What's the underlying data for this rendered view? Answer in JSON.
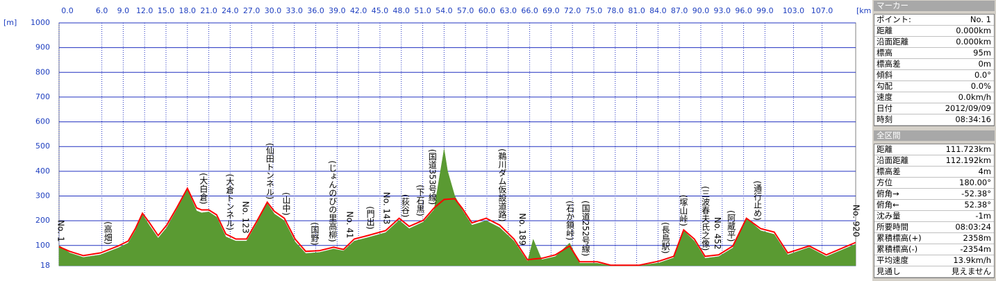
{
  "chart_data": {
    "type": "profile",
    "y_unit": "[m]",
    "x_unit": "[km]",
    "xlim": [
      0,
      111.723
    ],
    "ylim": [
      18,
      1000
    ],
    "xticks": [
      {
        "value": 0,
        "label": "0.0"
      },
      {
        "value": 6,
        "label": "6.0"
      },
      {
        "value": 9,
        "label": "9.0"
      },
      {
        "value": 12,
        "label": "12.0"
      },
      {
        "value": 15,
        "label": "15.0"
      },
      {
        "value": 18,
        "label": "18.0"
      },
      {
        "value": 21,
        "label": "21.0"
      },
      {
        "value": 24,
        "label": "24.0"
      },
      {
        "value": 27,
        "label": "27.0"
      },
      {
        "value": 30,
        "label": "30.0"
      },
      {
        "value": 33,
        "label": "33.0"
      },
      {
        "value": 36,
        "label": "36.0"
      },
      {
        "value": 39,
        "label": "39.0"
      },
      {
        "value": 42,
        "label": "42.0"
      },
      {
        "value": 45,
        "label": "45.0"
      },
      {
        "value": 48,
        "label": "48.0"
      },
      {
        "value": 51,
        "label": "51.0"
      },
      {
        "value": 54,
        "label": "54.0"
      },
      {
        "value": 57,
        "label": "57.0"
      },
      {
        "value": 60,
        "label": "60.0"
      },
      {
        "value": 63,
        "label": "63.0"
      },
      {
        "value": 66,
        "label": "66.0"
      },
      {
        "value": 69,
        "label": "69.0"
      },
      {
        "value": 72,
        "label": "72.0"
      },
      {
        "value": 75,
        "label": "75.0"
      },
      {
        "value": 78,
        "label": "78.0"
      },
      {
        "value": 81,
        "label": "81.0"
      },
      {
        "value": 84,
        "label": "84.0"
      },
      {
        "value": 87,
        "label": "87.0"
      },
      {
        "value": 90,
        "label": "90.0"
      },
      {
        "value": 93,
        "label": "93.0"
      },
      {
        "value": 96,
        "label": "96.0"
      },
      {
        "value": 99,
        "label": "99.0"
      },
      {
        "value": 103,
        "label": "103.0"
      },
      {
        "value": 107,
        "label": "107.0"
      }
    ],
    "yticks": [
      18,
      100,
      200,
      300,
      400,
      500,
      600,
      700,
      800,
      900,
      1000
    ],
    "grid": true,
    "x": [
      0,
      1.5,
      3.4,
      5.8,
      8.3,
      9.7,
      10.7,
      11.7,
      12.7,
      13.9,
      15.1,
      16.5,
      18.0,
      19.3,
      20.0,
      21.0,
      22.1,
      23.4,
      24.8,
      26.3,
      27.7,
      29.2,
      30.2,
      31.6,
      33.1,
      34.6,
      36.5,
      38.5,
      39.9,
      41.4,
      43.3,
      45.8,
      47.7,
      49.1,
      51.1,
      52.6,
      54.0,
      54.5,
      55.5,
      56.5,
      57.9,
      59.9,
      61.8,
      63.8,
      65.7,
      66.5,
      67.7,
      69.6,
      71.6,
      73.0,
      75.5,
      77.4,
      81.3,
      84.2,
      86.2,
      87.6,
      89.1,
      90.6,
      92.5,
      94.5,
      96.4,
      98.4,
      100.3,
      102.2,
      105.2,
      107.6,
      111.7
    ],
    "series": [
      {
        "kind": "area",
        "color": "#5a9a32",
        "values": [
          100,
          70,
          52,
          62,
          90,
          110,
          160,
          225,
          180,
          130,
          172,
          245,
          325,
          240,
          232,
          236,
          215,
          135,
          118,
          118,
          188,
          270,
          228,
          200,
          115,
          68,
          72,
          86,
          78,
          118,
          132,
          152,
          202,
          168,
          195,
          245,
          490,
          400,
          300,
          245,
          182,
          200,
          172,
          118,
          35,
          125,
          42,
          55,
          110,
          28,
          28,
          18,
          18,
          30,
          50,
          160,
          118,
          48,
          55,
          90,
          210,
          160,
          145,
          62,
          92,
          55,
          105
        ]
      },
      {
        "kind": "line",
        "color": "#ff0000",
        "values": [
          95,
          76,
          59,
          70,
          98,
          118,
          168,
          230,
          191,
          140,
          182,
          252,
          331,
          252,
          244,
          244,
          224,
          146,
          126,
          126,
          196,
          275,
          238,
          210,
          126,
          76,
          79,
          93,
          84,
          126,
          140,
          160,
          210,
          177,
          202,
          252,
          286,
          287,
          289,
          252,
          191,
          210,
          182,
          126,
          42,
          45,
          48,
          62,
          98,
          34,
          34,
          20,
          20,
          37,
          56,
          163,
          126,
          56,
          62,
          98,
          210,
          168,
          154,
          70,
          98,
          62,
          112
        ]
      }
    ],
    "annotations": [
      {
        "text": "No. 1",
        "x": 0.2
      },
      {
        "text": "(高畑)",
        "x": 6.8
      },
      {
        "text": "(大白倉)",
        "x": 20.2
      },
      {
        "text": "(大倉トンネル)",
        "x": 23.9
      },
      {
        "text": "No. 123",
        "x": 26.1
      },
      {
        "text": "(仙田トンネル)",
        "x": 29.5
      },
      {
        "text": "(山中)",
        "x": 31.8
      },
      {
        "text": "(国野)",
        "x": 35.8
      },
      {
        "text": "(じょんのびの里高柳)",
        "x": 38.3
      },
      {
        "text": "No. 41",
        "x": 40.7
      },
      {
        "text": "(門出)",
        "x": 43.6
      },
      {
        "text": "No. 143",
        "x": 45.9
      },
      {
        "text": "(荻谷)",
        "x": 48.5
      },
      {
        "text": "(下石黒)",
        "x": 50.6
      },
      {
        "text": "(国道353号線)",
        "x": 52.3
      },
      {
        "text": "(鵜川ダム仮設道路)",
        "x": 62.1
      },
      {
        "text": "No. 189",
        "x": 64.9
      },
      {
        "text": "(石か鎖峠)",
        "x": 71.6
      },
      {
        "text": "(国道252号線)",
        "x": 73.8
      },
      {
        "text": "(長鳥駅)",
        "x": 85.0
      },
      {
        "text": "(塚山峠)",
        "x": 87.5
      },
      {
        "text": "(三波春夫氏之像)",
        "x": 90.6
      },
      {
        "text": "No. 452",
        "x": 92.3
      },
      {
        "text": "(阿蔵平)",
        "x": 94.2
      },
      {
        "text": "(通行止め)",
        "x": 97.9
      },
      {
        "text": "No. 920",
        "x": 111.7
      }
    ]
  },
  "marker_panel": {
    "title": "マーカー",
    "rows": [
      [
        "ポイント:",
        "No. 1"
      ],
      [
        "距離",
        "0.000km"
      ],
      [
        "沿面距離",
        "0.000km"
      ],
      [
        "標高",
        "95m"
      ],
      [
        "標高差",
        "0m"
      ],
      [
        "傾斜",
        "0.0°"
      ],
      [
        "勾配",
        "0.0%"
      ],
      [
        "速度",
        "0.0km/h"
      ],
      [
        "日付",
        "2012/09/09"
      ],
      [
        "時刻",
        "08:34:16"
      ]
    ]
  },
  "summary_panel": {
    "title": "全区間",
    "rows": [
      [
        "距離",
        "111.723km"
      ],
      [
        "沿面距離",
        "112.192km"
      ],
      [
        "標高差",
        "4m"
      ],
      [
        "方位",
        "180.00°"
      ],
      [
        "俯角→",
        "-52.38°"
      ],
      [
        "俯角←",
        "52.38°"
      ],
      [
        "沈み量",
        "-1m"
      ],
      [
        "所要時間",
        "08:03:24"
      ],
      [
        "累積標高(+)",
        "2358m"
      ],
      [
        "累積標高(-)",
        "-2354m"
      ],
      [
        "平均速度",
        "13.9km/h"
      ],
      [
        "見通し",
        "見えません"
      ]
    ]
  }
}
